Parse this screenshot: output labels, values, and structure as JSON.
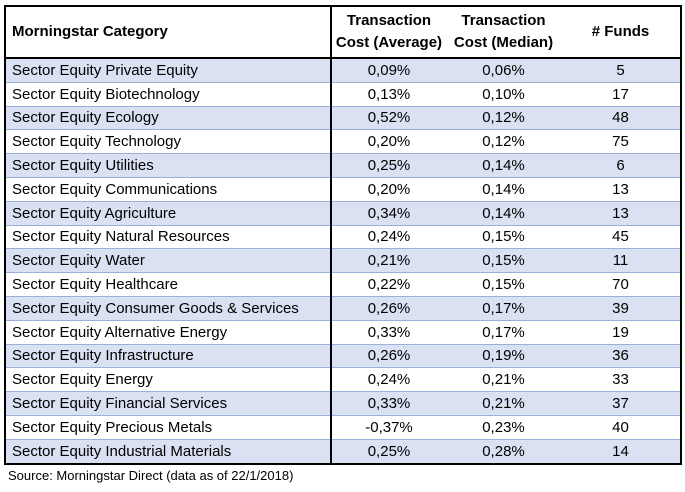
{
  "table": {
    "columns": [
      {
        "label": "Morningstar Category",
        "align": "left"
      },
      {
        "label": "Transaction Cost (Average)",
        "align": "center"
      },
      {
        "label": "Transaction Cost (Median)",
        "align": "center"
      },
      {
        "label": "# Funds",
        "align": "center"
      }
    ],
    "rows": [
      [
        "Sector Equity Private Equity",
        "0,09%",
        "0,06%",
        "5"
      ],
      [
        "Sector Equity Biotechnology",
        "0,13%",
        "0,10%",
        "17"
      ],
      [
        "Sector Equity Ecology",
        "0,52%",
        "0,12%",
        "48"
      ],
      [
        "Sector Equity Technology",
        "0,20%",
        "0,12%",
        "75"
      ],
      [
        "Sector Equity Utilities",
        "0,25%",
        "0,14%",
        "6"
      ],
      [
        "Sector Equity Communications",
        "0,20%",
        "0,14%",
        "13"
      ],
      [
        "Sector Equity Agriculture",
        "0,34%",
        "0,14%",
        "13"
      ],
      [
        "Sector Equity Natural Resources",
        "0,24%",
        "0,15%",
        "45"
      ],
      [
        "Sector Equity Water",
        "0,21%",
        "0,15%",
        "11"
      ],
      [
        "Sector Equity Healthcare",
        "0,22%",
        "0,15%",
        "70"
      ],
      [
        "Sector Equity Consumer Goods & Services",
        "0,26%",
        "0,17%",
        "39"
      ],
      [
        "Sector Equity Alternative Energy",
        "0,33%",
        "0,17%",
        "19"
      ],
      [
        "Sector Equity Infrastructure",
        "0,26%",
        "0,19%",
        "36"
      ],
      [
        "Sector Equity Energy",
        "0,24%",
        "0,21%",
        "33"
      ],
      [
        "Sector Equity Financial Services",
        "0,33%",
        "0,21%",
        "37"
      ],
      [
        "Sector Equity Precious Metals",
        "-0,37%",
        "0,23%",
        "40"
      ],
      [
        "Sector Equity Industrial Materials",
        "0,25%",
        "0,28%",
        "14"
      ]
    ]
  },
  "footer": {
    "source_note": "Source: Morningstar Direct (data as of 22/1/2018)"
  },
  "colors": {
    "band_fill": "#d9e1f2",
    "row_border": "#9bb0d9",
    "table_border": "#000000",
    "text": "#000000",
    "background": "#ffffff"
  },
  "chart_data": {
    "type": "table",
    "title": "",
    "columns": [
      "Morningstar Category",
      "Transaction Cost (Average)",
      "Transaction Cost (Median)",
      "# Funds"
    ],
    "rows": [
      [
        "Sector Equity Private Equity",
        "0,09%",
        "0,06%",
        5
      ],
      [
        "Sector Equity Biotechnology",
        "0,13%",
        "0,10%",
        17
      ],
      [
        "Sector Equity Ecology",
        "0,52%",
        "0,12%",
        48
      ],
      [
        "Sector Equity Technology",
        "0,20%",
        "0,12%",
        75
      ],
      [
        "Sector Equity Utilities",
        "0,25%",
        "0,14%",
        6
      ],
      [
        "Sector Equity Communications",
        "0,20%",
        "0,14%",
        13
      ],
      [
        "Sector Equity Agriculture",
        "0,34%",
        "0,14%",
        13
      ],
      [
        "Sector Equity Natural Resources",
        "0,24%",
        "0,15%",
        45
      ],
      [
        "Sector Equity Water",
        "0,21%",
        "0,15%",
        11
      ],
      [
        "Sector Equity Healthcare",
        "0,22%",
        "0,15%",
        70
      ],
      [
        "Sector Equity Consumer Goods & Services",
        "0,26%",
        "0,17%",
        39
      ],
      [
        "Sector Equity Alternative Energy",
        "0,33%",
        "0,17%",
        19
      ],
      [
        "Sector Equity Infrastructure",
        "0,26%",
        "0,19%",
        36
      ],
      [
        "Sector Equity Energy",
        "0,24%",
        "0,21%",
        33
      ],
      [
        "Sector Equity Financial Services",
        "0,33%",
        "0,21%",
        37
      ],
      [
        "Sector Equity Precious Metals",
        "-0,37%",
        "0,23%",
        40
      ],
      [
        "Sector Equity Industrial Materials",
        "0,25%",
        "0,28%",
        14
      ]
    ],
    "source_note": "Source: Morningstar Direct (data as of 22/1/2018)"
  }
}
